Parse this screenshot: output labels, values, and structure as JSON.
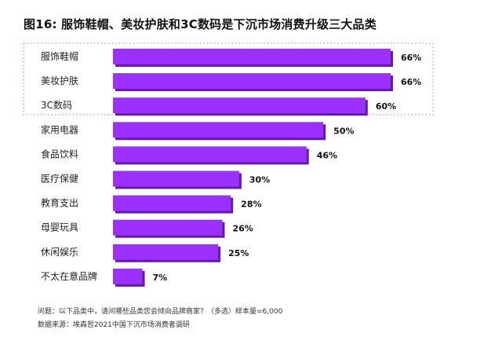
{
  "title": "图16: 服饰鞋帽、美妆护肤和3C数码是下沉市场消费升级三大品类",
  "notes": {
    "question": "问题：以下品类中，请问哪些品类您会倾向品牌商家？（多选）样本量=6,000",
    "source": "数据来源：埃森哲2021中国下沉市场消费者调研"
  },
  "colors": {
    "bar_fill": "#9b30ff",
    "bar_shadow": "#5e1f99",
    "highlight_border": "#d79bea"
  },
  "chart_data": {
    "type": "bar",
    "orientation": "horizontal",
    "categories": [
      "服饰鞋帽",
      "美妆护肤",
      "3C数码",
      "家用电器",
      "食品饮料",
      "医疗保健",
      "教育支出",
      "母婴玩具",
      "休闲娱乐",
      "不太在意品牌"
    ],
    "values": [
      66,
      66,
      60,
      50,
      46,
      30,
      28,
      26,
      25,
      7
    ],
    "value_labels": [
      "66%",
      "66%",
      "60%",
      "50%",
      "46%",
      "30%",
      "28%",
      "26%",
      "25%",
      "7%"
    ],
    "unit": "%",
    "xlim": [
      0,
      66
    ],
    "grid": false,
    "highlighted_categories": [
      "服饰鞋帽",
      "美妆护肤",
      "3C数码"
    ]
  }
}
